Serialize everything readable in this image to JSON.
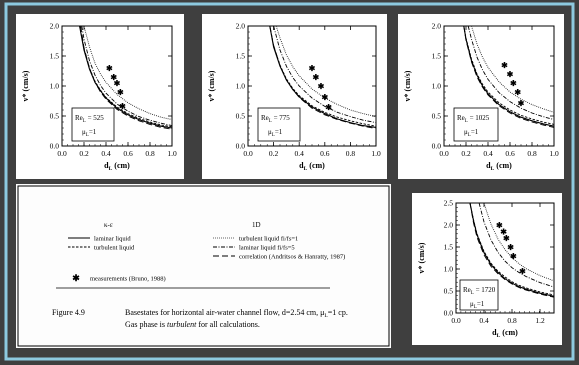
{
  "colors": {
    "background": "#3f3f3f",
    "panel_border": "#8dc9df",
    "panel": "#ffffff",
    "ink": "#000000"
  },
  "chart_data": [
    {
      "type": "line",
      "xlabel": "d_L (cm)",
      "ylabel": "v* (cm/s)",
      "xlim": [
        0.0,
        1.0
      ],
      "ylim": [
        0.0,
        2.0
      ],
      "xticks": [
        "0.0",
        "0.2",
        "0.4",
        "0.6",
        "0.8",
        "1.0"
      ],
      "yticks": [
        "0.0",
        "0.5",
        "1.0",
        "1.5",
        "2.0"
      ],
      "annotation": [
        "Re",
        "L",
        " = 525",
        "μ",
        "L",
        "=1"
      ],
      "series": [
        {
          "name": "laminar liquid",
          "x": [
            0.16,
            0.2,
            0.25,
            0.3,
            0.35,
            0.4,
            0.5,
            0.6,
            0.7,
            0.8,
            0.9,
            1.0
          ],
          "y": [
            2.0,
            1.6,
            1.28,
            1.06,
            0.92,
            0.8,
            0.63,
            0.52,
            0.44,
            0.38,
            0.33,
            0.3
          ]
        },
        {
          "name": "turbulent liquid",
          "x": [
            0.16,
            0.2,
            0.25,
            0.3,
            0.35,
            0.4,
            0.5,
            0.6,
            0.7,
            0.8,
            0.9,
            1.0
          ],
          "y": [
            2.0,
            1.62,
            1.3,
            1.08,
            0.93,
            0.81,
            0.65,
            0.54,
            0.46,
            0.4,
            0.35,
            0.32
          ]
        },
        {
          "name": "turbulent liquid fi/fs=1",
          "x": [
            0.2,
            0.25,
            0.3,
            0.35,
            0.4,
            0.5,
            0.6,
            0.7,
            0.8,
            0.9,
            1.0
          ],
          "y": [
            2.0,
            1.65,
            1.38,
            1.2,
            1.06,
            0.86,
            0.72,
            0.62,
            0.54,
            0.48,
            0.44
          ]
        },
        {
          "name": "laminar liquid fi/fs=5",
          "x": [
            0.18,
            0.2,
            0.25,
            0.3,
            0.35,
            0.4,
            0.5,
            0.6,
            0.7,
            0.8,
            0.9,
            1.0
          ],
          "y": [
            2.0,
            1.78,
            1.42,
            1.18,
            1.01,
            0.88,
            0.7,
            0.58,
            0.49,
            0.43,
            0.38,
            0.34
          ]
        },
        {
          "name": "correlation (Andritsos & Hanratty, 1987)",
          "x": [
            0.17,
            0.2,
            0.25,
            0.3,
            0.35,
            0.4,
            0.5,
            0.6,
            0.7,
            0.8,
            0.9,
            1.0
          ],
          "y": [
            2.0,
            1.64,
            1.3,
            1.06,
            0.9,
            0.78,
            0.61,
            0.5,
            0.42,
            0.36,
            0.31,
            0.28
          ]
        },
        {
          "name": "measurements (Bruno, 1988)",
          "x": [
            0.43,
            0.47,
            0.5,
            0.53,
            0.55
          ],
          "y": [
            1.3,
            1.15,
            1.05,
            0.9,
            0.67
          ]
        }
      ]
    },
    {
      "type": "line",
      "xlabel": "d_L (cm)",
      "ylabel": "v* (cm/s)",
      "xlim": [
        0.0,
        1.0
      ],
      "ylim": [
        0.0,
        2.0
      ],
      "xticks": [
        "0.0",
        "0.2",
        "0.4",
        "0.6",
        "0.8",
        "1.0"
      ],
      "yticks": [
        "0.0",
        "0.5",
        "1.0",
        "1.5",
        "2.0"
      ],
      "annotation": [
        "Re",
        "L",
        " = 775",
        "μ",
        "L",
        "=1"
      ],
      "series": [
        {
          "name": "laminar liquid",
          "x": [
            0.17,
            0.2,
            0.25,
            0.3,
            0.35,
            0.4,
            0.5,
            0.6,
            0.7,
            0.8,
            0.9,
            1.0
          ],
          "y": [
            2.0,
            1.65,
            1.33,
            1.1,
            0.94,
            0.82,
            0.65,
            0.54,
            0.45,
            0.39,
            0.34,
            0.31
          ]
        },
        {
          "name": "turbulent liquid",
          "x": [
            0.17,
            0.2,
            0.25,
            0.3,
            0.35,
            0.4,
            0.5,
            0.6,
            0.7,
            0.8,
            0.9,
            1.0
          ],
          "y": [
            2.0,
            1.67,
            1.35,
            1.12,
            0.96,
            0.84,
            0.67,
            0.56,
            0.48,
            0.42,
            0.37,
            0.33
          ]
        },
        {
          "name": "turbulent liquid fi/fs=1",
          "x": [
            0.22,
            0.25,
            0.3,
            0.35,
            0.4,
            0.5,
            0.6,
            0.7,
            0.8,
            0.9,
            1.0
          ],
          "y": [
            2.0,
            1.8,
            1.52,
            1.32,
            1.17,
            0.95,
            0.8,
            0.69,
            0.6,
            0.54,
            0.49
          ]
        },
        {
          "name": "laminar liquid fi/fs=5",
          "x": [
            0.2,
            0.25,
            0.3,
            0.35,
            0.4,
            0.5,
            0.6,
            0.7,
            0.8,
            0.9,
            1.0
          ],
          "y": [
            2.0,
            1.6,
            1.33,
            1.14,
            1.0,
            0.8,
            0.66,
            0.56,
            0.49,
            0.43,
            0.39
          ]
        },
        {
          "name": "correlation (Andritsos & Hanratty, 1987)",
          "x": [
            0.17,
            0.2,
            0.25,
            0.3,
            0.35,
            0.4,
            0.5,
            0.6,
            0.7,
            0.8,
            0.9,
            1.0
          ],
          "y": [
            2.0,
            1.68,
            1.34,
            1.1,
            0.94,
            0.81,
            0.63,
            0.52,
            0.44,
            0.38,
            0.33,
            0.29
          ]
        },
        {
          "name": "measurements (Bruno, 1988)",
          "x": [
            0.5,
            0.53,
            0.57,
            0.6,
            0.63
          ],
          "y": [
            1.3,
            1.15,
            1.0,
            0.82,
            0.65
          ]
        }
      ]
    },
    {
      "type": "line",
      "xlabel": "d_L (cm)",
      "ylabel": "v* (cm/s)",
      "xlim": [
        0.0,
        1.0
      ],
      "ylim": [
        0.0,
        2.0
      ],
      "xticks": [
        "0.0",
        "0.2",
        "0.4",
        "0.6",
        "0.8",
        "1.0"
      ],
      "yticks": [
        "0.0",
        "0.5",
        "1.0",
        "1.5",
        "2.0"
      ],
      "annotation": [
        "Re",
        "L",
        " = 1025",
        "μ",
        "L",
        "=1"
      ],
      "series": [
        {
          "name": "laminar liquid",
          "x": [
            0.18,
            0.2,
            0.25,
            0.3,
            0.35,
            0.4,
            0.5,
            0.6,
            0.7,
            0.8,
            0.9,
            1.0
          ],
          "y": [
            2.0,
            1.78,
            1.42,
            1.18,
            1.0,
            0.87,
            0.69,
            0.57,
            0.48,
            0.42,
            0.37,
            0.33
          ]
        },
        {
          "name": "turbulent liquid",
          "x": [
            0.18,
            0.2,
            0.25,
            0.3,
            0.35,
            0.4,
            0.5,
            0.6,
            0.7,
            0.8,
            0.9,
            1.0
          ],
          "y": [
            2.0,
            1.8,
            1.45,
            1.2,
            1.03,
            0.9,
            0.72,
            0.6,
            0.51,
            0.45,
            0.4,
            0.36
          ]
        },
        {
          "name": "turbulent liquid fi/fs=1",
          "x": [
            0.25,
            0.3,
            0.35,
            0.4,
            0.5,
            0.6,
            0.7,
            0.8,
            0.9,
            1.0
          ],
          "y": [
            2.0,
            1.7,
            1.48,
            1.31,
            1.07,
            0.9,
            0.78,
            0.69,
            0.62,
            0.56
          ]
        },
        {
          "name": "laminar liquid fi/fs=5",
          "x": [
            0.22,
            0.25,
            0.3,
            0.35,
            0.4,
            0.5,
            0.6,
            0.7,
            0.8,
            0.9,
            1.0
          ],
          "y": [
            2.0,
            1.78,
            1.48,
            1.27,
            1.11,
            0.89,
            0.74,
            0.63,
            0.55,
            0.49,
            0.44
          ]
        },
        {
          "name": "correlation (Andritsos & Hanratty, 1987)",
          "x": [
            0.18,
            0.2,
            0.25,
            0.3,
            0.35,
            0.4,
            0.5,
            0.6,
            0.7,
            0.8,
            0.9,
            1.0
          ],
          "y": [
            2.0,
            1.76,
            1.4,
            1.15,
            0.98,
            0.85,
            0.67,
            0.55,
            0.46,
            0.4,
            0.35,
            0.31
          ]
        },
        {
          "name": "measurements (Bruno, 1988)",
          "x": [
            0.55,
            0.6,
            0.63,
            0.67,
            0.7
          ],
          "y": [
            1.35,
            1.2,
            1.05,
            0.9,
            0.72
          ]
        }
      ]
    },
    {
      "type": "line",
      "xlabel": "d_L (cm)",
      "ylabel": "v* (cm/s)",
      "xlim": [
        0.0,
        1.4
      ],
      "ylim": [
        0.0,
        2.5
      ],
      "xticks": [
        "0.0",
        "0.4",
        "0.8",
        "1.2"
      ],
      "yticks": [
        "0.0",
        "0.5",
        "1.0",
        "1.5",
        "2.0",
        "2.5"
      ],
      "annotation": [
        "Re",
        "L",
        " = 1720",
        "μ",
        "L",
        "=1"
      ],
      "series": [
        {
          "name": "laminar liquid",
          "x": [
            0.2,
            0.25,
            0.3,
            0.4,
            0.5,
            0.6,
            0.7,
            0.8,
            0.9,
            1.0,
            1.2,
            1.4
          ],
          "y": [
            2.5,
            2.1,
            1.78,
            1.37,
            1.1,
            0.92,
            0.78,
            0.68,
            0.6,
            0.54,
            0.45,
            0.38
          ]
        },
        {
          "name": "turbulent liquid",
          "x": [
            0.2,
            0.25,
            0.3,
            0.4,
            0.5,
            0.6,
            0.7,
            0.8,
            0.9,
            1.0,
            1.2,
            1.4
          ],
          "y": [
            2.5,
            2.12,
            1.8,
            1.4,
            1.13,
            0.95,
            0.82,
            0.71,
            0.63,
            0.57,
            0.48,
            0.41
          ]
        },
        {
          "name": "turbulent liquid fi/fs=1",
          "x": [
            0.4,
            0.45,
            0.5,
            0.6,
            0.7,
            0.8,
            0.9,
            1.0,
            1.2,
            1.4
          ],
          "y": [
            2.5,
            2.25,
            2.02,
            1.68,
            1.44,
            1.26,
            1.12,
            1.01,
            0.85,
            0.73
          ]
        },
        {
          "name": "laminar liquid fi/fs=5",
          "x": [
            0.33,
            0.4,
            0.5,
            0.6,
            0.7,
            0.8,
            0.9,
            1.0,
            1.2,
            1.4
          ],
          "y": [
            2.5,
            2.07,
            1.66,
            1.38,
            1.18,
            1.03,
            0.92,
            0.83,
            0.69,
            0.59
          ]
        },
        {
          "name": "correlation (Andritsos & Hanratty, 1987)",
          "x": [
            0.2,
            0.25,
            0.3,
            0.4,
            0.5,
            0.6,
            0.7,
            0.8,
            0.9,
            1.0,
            1.2,
            1.4
          ],
          "y": [
            2.5,
            2.05,
            1.72,
            1.32,
            1.06,
            0.89,
            0.76,
            0.66,
            0.58,
            0.52,
            0.43,
            0.36
          ]
        },
        {
          "name": "measurements (Bruno, 1988)",
          "x": [
            0.62,
            0.68,
            0.72,
            0.78,
            0.82,
            0.95
          ],
          "y": [
            2.0,
            1.85,
            1.7,
            1.5,
            1.3,
            0.95
          ]
        }
      ]
    }
  ],
  "legend": {
    "col1_title": "κ-ε",
    "col2_title": "1D",
    "items": [
      {
        "label": "laminar liquid",
        "style": "solid"
      },
      {
        "label": "turbulent liquid",
        "style": "shortdash"
      },
      {
        "label": "turbulent liquid fi/fs=1",
        "style": "dot"
      },
      {
        "label": "laminar liquid fi/fs=5",
        "style": "dashdot"
      },
      {
        "label": "correlation (Andritsos & Hanratty, 1987)",
        "style": "longdash"
      }
    ],
    "measurements_label": "measurements (Bruno, 1988)"
  },
  "caption": {
    "figure_label": "Figure 4.9",
    "line1_pre": "Basestates for horizontal air-water channel flow, d=2.54 cm, μ",
    "line1_sub": "L",
    "line1_post": "=1 cp.",
    "line2_pre": "Gas phase is ",
    "line2_italic": "turbulent",
    "line2_post": " for all calculations."
  }
}
